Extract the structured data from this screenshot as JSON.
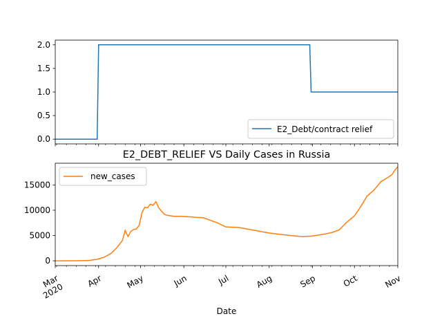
{
  "chart_data": [
    {
      "type": "line",
      "title": "",
      "xlabel": "",
      "ylabel": "",
      "xlim": [
        "2020-03-01",
        "2020-11-01"
      ],
      "ylim": [
        -0.1,
        2.1
      ],
      "yticks": [
        0.0,
        0.5,
        1.0,
        1.5,
        2.0
      ],
      "ytick_labels": [
        "0.0",
        "0.5",
        "1.0",
        "1.5",
        "2.0"
      ],
      "legend_position": "lower right",
      "grid": false,
      "series": [
        {
          "name": "E2_Debt/contract relief",
          "color": "#1f77b4",
          "points": [
            [
              "2020-03-01",
              0
            ],
            [
              "2020-03-31",
              0
            ],
            [
              "2020-04-01",
              2
            ],
            [
              "2020-08-30",
              2
            ],
            [
              "2020-08-31",
              1
            ],
            [
              "2020-11-01",
              1
            ]
          ]
        }
      ]
    },
    {
      "type": "line",
      "title": "E2_DEBT_RELIEF VS Daily Cases in Russia",
      "xlabel": "Date",
      "ylabel": "",
      "xlim": [
        "2020-03-01",
        "2020-11-01"
      ],
      "ylim": [
        -950,
        19300
      ],
      "yticks": [
        0,
        5000,
        10000,
        15000
      ],
      "ytick_labels": [
        "0",
        "5000",
        "10000",
        "15000"
      ],
      "xtick_labels": [
        "Mar\n2020",
        "Apr",
        "May",
        "Jun",
        "Jul",
        "Aug",
        "Sep",
        "Oct",
        "Nov"
      ],
      "legend_position": "upper left",
      "grid": false,
      "series": [
        {
          "name": "new_cases",
          "color": "#ff7f0e",
          "points": [
            [
              "2020-03-01",
              0
            ],
            [
              "2020-03-15",
              10
            ],
            [
              "2020-03-25",
              60
            ],
            [
              "2020-03-31",
              300
            ],
            [
              "2020-04-05",
              700
            ],
            [
              "2020-04-10",
              1500
            ],
            [
              "2020-04-14",
              2600
            ],
            [
              "2020-04-18",
              4000
            ],
            [
              "2020-04-20",
              6000
            ],
            [
              "2020-04-22",
              4800
            ],
            [
              "2020-04-24",
              5800
            ],
            [
              "2020-04-26",
              6200
            ],
            [
              "2020-04-28",
              6300
            ],
            [
              "2020-04-30",
              7000
            ],
            [
              "2020-05-02",
              9500
            ],
            [
              "2020-05-04",
              10600
            ],
            [
              "2020-05-06",
              10500
            ],
            [
              "2020-05-08",
              11200
            ],
            [
              "2020-05-10",
              11000
            ],
            [
              "2020-05-12",
              11700
            ],
            [
              "2020-05-14",
              10500
            ],
            [
              "2020-05-16",
              9800
            ],
            [
              "2020-05-18",
              9200
            ],
            [
              "2020-05-20",
              9000
            ],
            [
              "2020-05-25",
              8800
            ],
            [
              "2020-05-30",
              8800
            ],
            [
              "2020-06-05",
              8700
            ],
            [
              "2020-06-10",
              8600
            ],
            [
              "2020-06-15",
              8500
            ],
            [
              "2020-06-20",
              8000
            ],
            [
              "2020-06-25",
              7500
            ],
            [
              "2020-07-01",
              6700
            ],
            [
              "2020-07-10",
              6600
            ],
            [
              "2020-07-20",
              6100
            ],
            [
              "2020-08-01",
              5500
            ],
            [
              "2020-08-10",
              5200
            ],
            [
              "2020-08-20",
              4900
            ],
            [
              "2020-08-25",
              4800
            ],
            [
              "2020-09-01",
              4900
            ],
            [
              "2020-09-10",
              5300
            ],
            [
              "2020-09-15",
              5600
            ],
            [
              "2020-09-20",
              6100
            ],
            [
              "2020-09-25",
              7500
            ],
            [
              "2020-10-01",
              8900
            ],
            [
              "2020-10-05",
              10500
            ],
            [
              "2020-10-10",
              12800
            ],
            [
              "2020-10-15",
              14000
            ],
            [
              "2020-10-20",
              15700
            ],
            [
              "2020-10-25",
              16500
            ],
            [
              "2020-10-28",
              17100
            ],
            [
              "2020-10-30",
              18000
            ],
            [
              "2020-11-01",
              18600
            ]
          ]
        }
      ]
    }
  ]
}
